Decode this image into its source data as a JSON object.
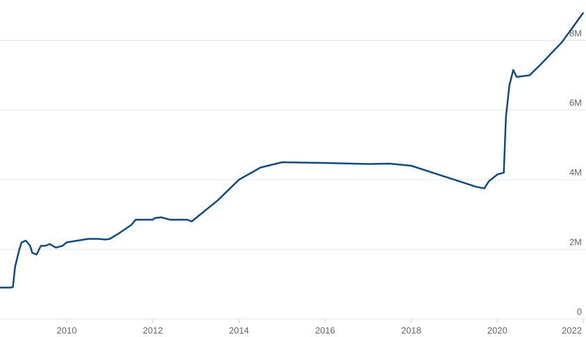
{
  "chart_data": {
    "type": "line",
    "x": [
      2008.45,
      2008.7,
      2008.75,
      2008.8,
      2008.9,
      2008.95,
      2009.05,
      2009.15,
      2009.2,
      2009.3,
      2009.4,
      2009.5,
      2009.6,
      2009.75,
      2009.9,
      2010.0,
      2010.25,
      2010.5,
      2010.75,
      2010.9,
      2011.0,
      2011.2,
      2011.5,
      2011.6,
      2012.0,
      2012.05,
      2012.2,
      2012.4,
      2012.8,
      2012.9,
      2013.0,
      2013.5,
      2014.0,
      2014.5,
      2015.0,
      2016.0,
      2017.0,
      2017.5,
      2018.0,
      2018.5,
      2019.0,
      2019.5,
      2019.7,
      2019.8,
      2020.0,
      2020.15,
      2020.2,
      2020.28,
      2020.37,
      2020.45,
      2020.75,
      2021.0,
      2021.5,
      2022.0
    ],
    "values": [
      900000,
      900000,
      920000,
      1500000,
      2000000,
      2200000,
      2250000,
      2100000,
      1900000,
      1850000,
      2100000,
      2100000,
      2150000,
      2050000,
      2100000,
      2200000,
      2250000,
      2300000,
      2300000,
      2280000,
      2300000,
      2450000,
      2700000,
      2850000,
      2850000,
      2900000,
      2920000,
      2850000,
      2850000,
      2800000,
      2900000,
      3400000,
      4000000,
      4350000,
      4500000,
      4480000,
      4450000,
      4460000,
      4400000,
      4200000,
      4000000,
      3800000,
      3750000,
      3950000,
      4150000,
      4200000,
      5800000,
      6700000,
      7150000,
      6950000,
      7000000,
      7300000,
      7950000,
      8800000
    ],
    "color": "#0f4a7d",
    "xlim": [
      2008.45,
      2022.06
    ],
    "xticks": [
      2010,
      2012,
      2014,
      2016,
      2018,
      2020,
      2022
    ],
    "ylim": [
      0,
      9160000
    ],
    "yticks": [
      0,
      {
        "value": 2000000,
        "label": "2M"
      },
      {
        "value": 4000000,
        "label": "4M"
      },
      {
        "value": 6000000,
        "label": "6M"
      },
      {
        "value": 8000000,
        "label": "8M"
      }
    ],
    "grid": true
  }
}
